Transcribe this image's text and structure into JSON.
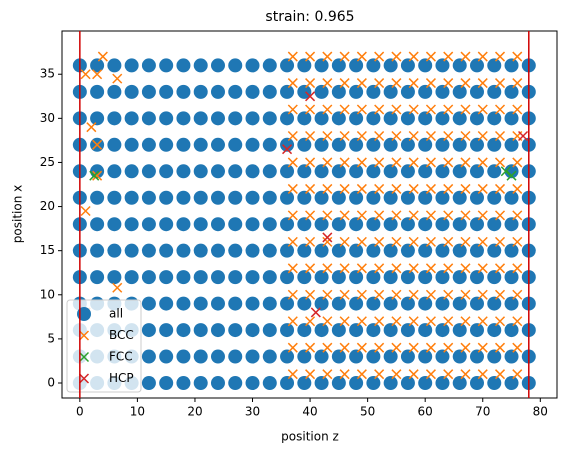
{
  "chart_data": {
    "type": "scatter",
    "title": "strain: 0.965",
    "x_label": "position z",
    "y_label": "position x",
    "xlim": [
      -3.1,
      82.9
    ],
    "ylim": [
      -1.7,
      39.9
    ],
    "xticks": [
      0,
      10,
      20,
      30,
      40,
      50,
      60,
      70,
      80
    ],
    "yticks": [
      0,
      5,
      10,
      15,
      20,
      25,
      30,
      35
    ],
    "vlines": [
      0,
      78
    ],
    "vline_color": "#d00000",
    "legend": "lower left",
    "series": [
      {
        "name": "all",
        "color": "#1f77b4",
        "marker": "o",
        "x": [
          0,
          3,
          6,
          9,
          12,
          15,
          18,
          21,
          24,
          27,
          30,
          33,
          36,
          39,
          42,
          45,
          48,
          51,
          54,
          57,
          60,
          63,
          66,
          69,
          72,
          75,
          78,
          0,
          3,
          6,
          9,
          12,
          15,
          18,
          21,
          24,
          27,
          30,
          33,
          36,
          39,
          42,
          45,
          48,
          51,
          54,
          57,
          60,
          63,
          66,
          69,
          72,
          75,
          78,
          0,
          3,
          6,
          9,
          12,
          15,
          18,
          21,
          24,
          27,
          30,
          33,
          36,
          39,
          42,
          45,
          48,
          51,
          54,
          57,
          60,
          63,
          66,
          69,
          72,
          75,
          78,
          0,
          3,
          6,
          9,
          12,
          15,
          18,
          21,
          24,
          27,
          30,
          33,
          36,
          39,
          42,
          45,
          48,
          51,
          54,
          57,
          60,
          63,
          66,
          69,
          72,
          75,
          78,
          0,
          3,
          6,
          9,
          12,
          15,
          18,
          21,
          24,
          27,
          30,
          33,
          36,
          39,
          42,
          45,
          48,
          51,
          54,
          57,
          60,
          63,
          66,
          69,
          72,
          75,
          78,
          0,
          3,
          6,
          9,
          12,
          15,
          18,
          21,
          24,
          27,
          30,
          33,
          36,
          39,
          42,
          45,
          48,
          51,
          54,
          57,
          60,
          63,
          66,
          69,
          72,
          75,
          78,
          0,
          3,
          6,
          9,
          12,
          15,
          18,
          21,
          24,
          27,
          30,
          33,
          36,
          39,
          42,
          45,
          48,
          51,
          54,
          57,
          60,
          63,
          66,
          69,
          72,
          75,
          78,
          0,
          3,
          6,
          9,
          12,
          15,
          18,
          21,
          24,
          27,
          30,
          33,
          36,
          39,
          42,
          45,
          48,
          51,
          54,
          57,
          60,
          63,
          66,
          69,
          72,
          75,
          78,
          0,
          3,
          6,
          9,
          12,
          15,
          18,
          21,
          24,
          27,
          30,
          33,
          36,
          39,
          42,
          45,
          48,
          51,
          54,
          57,
          60,
          63,
          66,
          69,
          72,
          75,
          78,
          0,
          3,
          6,
          9,
          12,
          15,
          18,
          21,
          24,
          27,
          30,
          33,
          36,
          39,
          42,
          45,
          48,
          51,
          54,
          57,
          60,
          63,
          66,
          69,
          72,
          75,
          78,
          0,
          3,
          6,
          9,
          12,
          15,
          18,
          21,
          24,
          27,
          30,
          33,
          36,
          39,
          42,
          45,
          48,
          51,
          54,
          57,
          60,
          63,
          66,
          69,
          72,
          75,
          78,
          0,
          3,
          6,
          9,
          12,
          15,
          18,
          21,
          24,
          27,
          30,
          33,
          36,
          39,
          42,
          45,
          48,
          51,
          54,
          57,
          60,
          63,
          66,
          69,
          72,
          75,
          78,
          0,
          3,
          6,
          9,
          12,
          15,
          18,
          21,
          24,
          27,
          30,
          33,
          36,
          39,
          42,
          45,
          48,
          51,
          54,
          57,
          60,
          63,
          66,
          69,
          72,
          75,
          78
        ],
        "y": [
          0,
          0,
          0,
          0,
          0,
          0,
          0,
          0,
          0,
          0,
          0,
          0,
          0,
          0,
          0,
          0,
          0,
          0,
          0,
          0,
          0,
          0,
          0,
          0,
          0,
          0,
          0,
          3,
          3,
          3,
          3,
          3,
          3,
          3,
          3,
          3,
          3,
          3,
          3,
          3,
          3,
          3,
          3,
          3,
          3,
          3,
          3,
          3,
          3,
          3,
          3,
          3,
          3,
          3,
          6,
          6,
          6,
          6,
          6,
          6,
          6,
          6,
          6,
          6,
          6,
          6,
          6,
          6,
          6,
          6,
          6,
          6,
          6,
          6,
          6,
          6,
          6,
          6,
          6,
          6,
          6,
          9,
          9,
          9,
          9,
          9,
          9,
          9,
          9,
          9,
          9,
          9,
          9,
          9,
          9,
          9,
          9,
          9,
          9,
          9,
          9,
          9,
          9,
          9,
          9,
          9,
          9,
          9,
          12,
          12,
          12,
          12,
          12,
          12,
          12,
          12,
          12,
          12,
          12,
          12,
          12,
          12,
          12,
          12,
          12,
          12,
          12,
          12,
          12,
          12,
          12,
          12,
          12,
          12,
          12,
          15,
          15,
          15,
          15,
          15,
          15,
          15,
          15,
          15,
          15,
          15,
          15,
          15,
          15,
          15,
          15,
          15,
          15,
          15,
          15,
          15,
          15,
          15,
          15,
          15,
          15,
          15,
          18,
          18,
          18,
          18,
          18,
          18,
          18,
          18,
          18,
          18,
          18,
          18,
          18,
          18,
          18,
          18,
          18,
          18,
          18,
          18,
          18,
          18,
          18,
          18,
          18,
          18,
          18,
          21,
          21,
          21,
          21,
          21,
          21,
          21,
          21,
          21,
          21,
          21,
          21,
          21,
          21,
          21,
          21,
          21,
          21,
          21,
          21,
          21,
          21,
          21,
          21,
          21,
          21,
          21,
          24,
          24,
          24,
          24,
          24,
          24,
          24,
          24,
          24,
          24,
          24,
          24,
          24,
          24,
          24,
          24,
          24,
          24,
          24,
          24,
          24,
          24,
          24,
          24,
          24,
          24,
          24,
          27,
          27,
          27,
          27,
          27,
          27,
          27,
          27,
          27,
          27,
          27,
          27,
          27,
          27,
          27,
          27,
          27,
          27,
          27,
          27,
          27,
          27,
          27,
          27,
          27,
          27,
          27,
          30,
          30,
          30,
          30,
          30,
          30,
          30,
          30,
          30,
          30,
          30,
          30,
          30,
          30,
          30,
          30,
          30,
          30,
          30,
          30,
          30,
          30,
          30,
          30,
          30,
          30,
          30,
          33,
          33,
          33,
          33,
          33,
          33,
          33,
          33,
          33,
          33,
          33,
          33,
          33,
          33,
          33,
          33,
          33,
          33,
          33,
          33,
          33,
          33,
          33,
          33,
          33,
          33,
          33,
          36,
          36,
          36,
          36,
          36,
          36,
          36,
          36,
          36,
          36,
          36,
          36,
          36,
          36,
          36,
          36,
          36,
          36,
          36,
          36,
          36,
          36,
          36,
          36,
          36,
          36,
          36
        ]
      },
      {
        "name": "BCC",
        "color": "#ff7f0e",
        "marker": "x",
        "x": [
          37,
          40,
          43,
          46,
          49,
          52,
          55,
          58,
          61,
          64,
          67,
          70,
          73,
          76,
          37,
          40,
          43,
          46,
          49,
          52,
          55,
          58,
          61,
          64,
          67,
          70,
          73,
          76,
          37,
          40,
          43,
          46,
          49,
          52,
          55,
          58,
          61,
          64,
          67,
          70,
          73,
          76,
          37,
          40,
          43,
          46,
          49,
          52,
          55,
          58,
          61,
          64,
          67,
          70,
          73,
          76,
          37,
          40,
          43,
          46,
          49,
          52,
          55,
          58,
          61,
          64,
          67,
          70,
          73,
          76,
          37,
          40,
          43,
          46,
          49,
          52,
          55,
          58,
          61,
          64,
          67,
          70,
          73,
          76,
          37,
          40,
          43,
          46,
          49,
          52,
          55,
          58,
          61,
          64,
          67,
          70,
          73,
          76,
          37,
          40,
          43,
          46,
          49,
          52,
          55,
          58,
          61,
          64,
          67,
          70,
          73,
          76,
          37,
          40,
          43,
          46,
          49,
          52,
          55,
          58,
          61,
          64,
          67,
          70,
          73,
          76,
          37,
          40,
          43,
          46,
          49,
          52,
          55,
          58,
          61,
          64,
          67,
          70,
          73,
          76,
          37,
          40,
          43,
          46,
          49,
          52,
          55,
          58,
          61,
          64,
          67,
          70,
          73,
          76,
          37,
          40,
          43,
          46,
          49,
          52,
          55,
          58,
          61,
          64,
          67,
          70,
          73,
          76,
          37,
          40,
          43,
          46,
          49,
          52,
          55,
          58,
          61,
          64,
          67,
          70,
          73,
          76,
          1,
          3,
          4,
          6.5,
          2,
          3,
          1,
          3,
          6.5,
          1
        ],
        "y": [
          1,
          1,
          1,
          1,
          1,
          1,
          1,
          1,
          1,
          1,
          1,
          1,
          1,
          1,
          4,
          4,
          4,
          4,
          4,
          4,
          4,
          4,
          4,
          4,
          4,
          4,
          4,
          4,
          7,
          7,
          7,
          7,
          7,
          7,
          7,
          7,
          7,
          7,
          7,
          7,
          7,
          7,
          10,
          10,
          10,
          10,
          10,
          10,
          10,
          10,
          10,
          10,
          10,
          10,
          10,
          10,
          13,
          13,
          13,
          13,
          13,
          13,
          13,
          13,
          13,
          13,
          13,
          13,
          13,
          13,
          16,
          16,
          16,
          16,
          16,
          16,
          16,
          16,
          16,
          16,
          16,
          16,
          16,
          16,
          19,
          19,
          19,
          19,
          19,
          19,
          19,
          19,
          19,
          19,
          19,
          19,
          19,
          19,
          22,
          22,
          22,
          22,
          22,
          22,
          22,
          22,
          22,
          22,
          22,
          22,
          22,
          22,
          25,
          25,
          25,
          25,
          25,
          25,
          25,
          25,
          25,
          25,
          25,
          25,
          25,
          25,
          28,
          28,
          28,
          28,
          28,
          28,
          28,
          28,
          28,
          28,
          28,
          28,
          28,
          28,
          31,
          31,
          31,
          31,
          31,
          31,
          31,
          31,
          31,
          31,
          31,
          31,
          31,
          31,
          34,
          34,
          34,
          34,
          34,
          34,
          34,
          34,
          34,
          34,
          34,
          34,
          34,
          34,
          37,
          37,
          37,
          37,
          37,
          37,
          37,
          37,
          37,
          37,
          37,
          37,
          37,
          37,
          35,
          35,
          37,
          34.5,
          29,
          27,
          19.5,
          23.5,
          10.8,
          8
        ]
      },
      {
        "name": "FCC",
        "color": "#2ca02c",
        "marker": "x",
        "x": [
          74,
          75,
          2.5
        ],
        "y": [
          24,
          23.5,
          23.5
        ]
      },
      {
        "name": "HCP",
        "color": "#d62728",
        "marker": "x",
        "x": [
          36,
          40,
          43,
          41,
          77
        ],
        "y": [
          26.5,
          32.5,
          16.5,
          8,
          28
        ]
      }
    ]
  }
}
